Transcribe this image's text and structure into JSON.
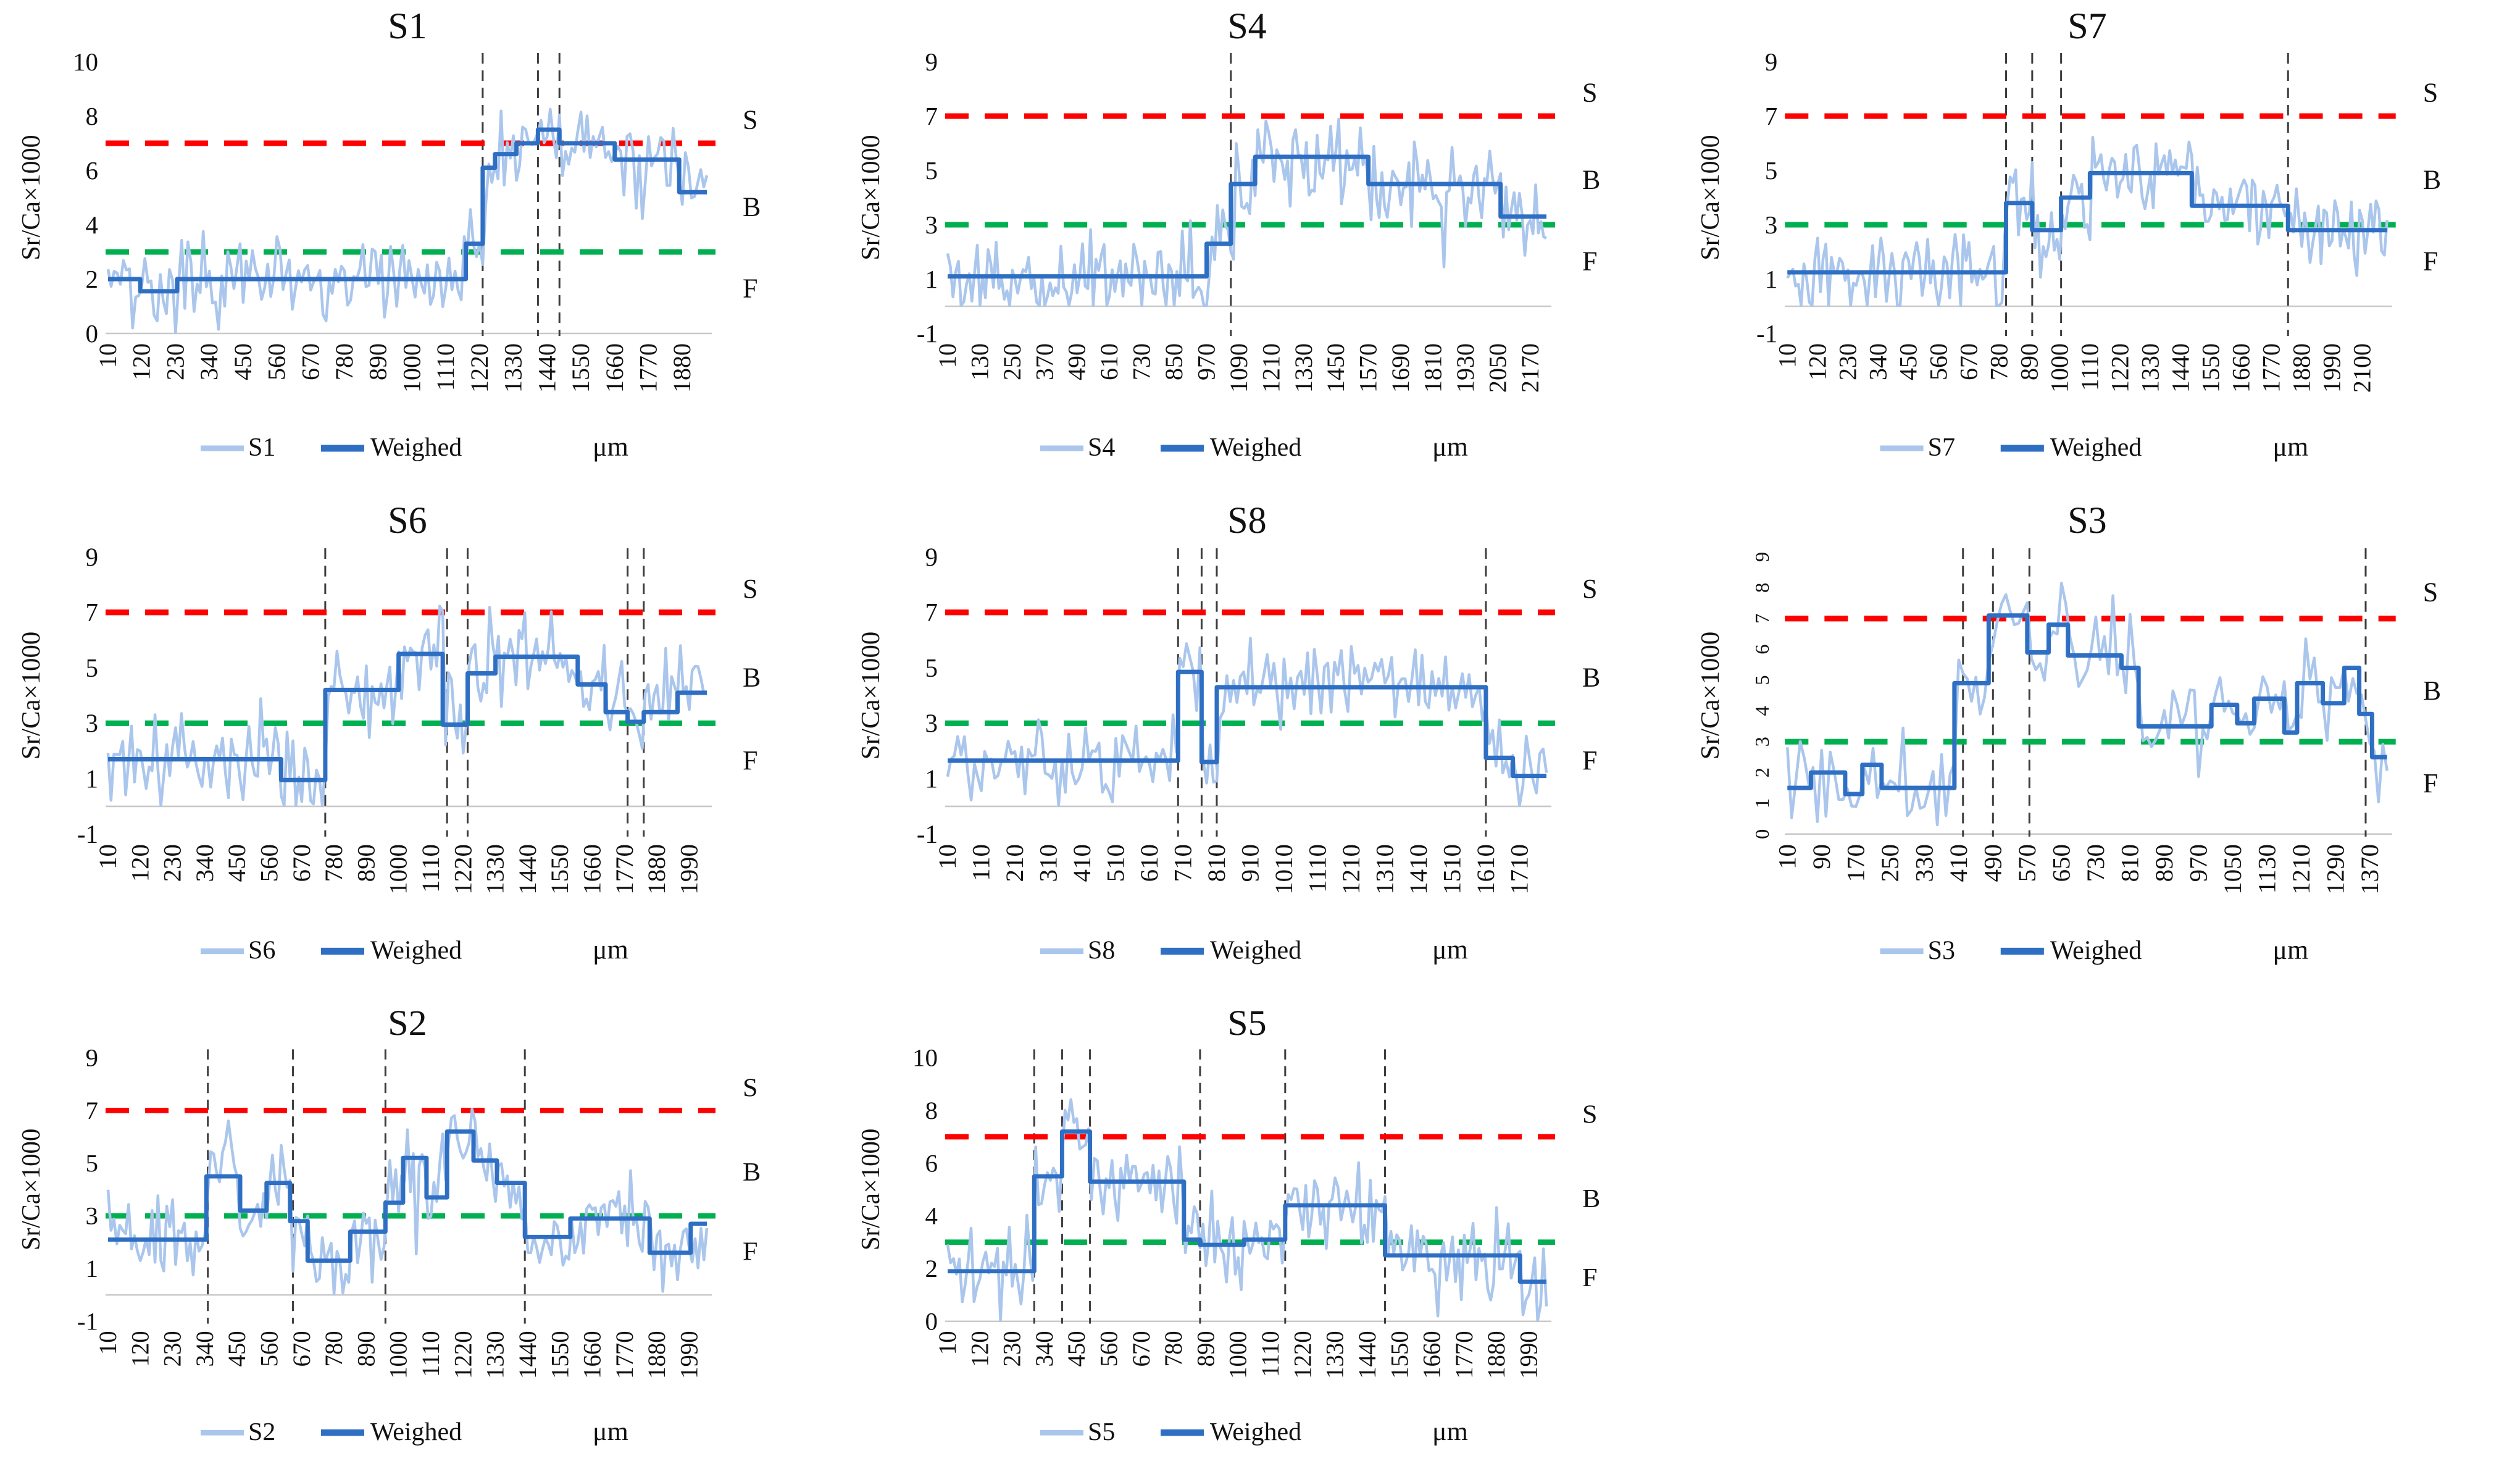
{
  "labels": {
    "ylabel": "Sr/Ca×1000",
    "xunit": "μm",
    "weighed": "Weighed",
    "zone_s": "S",
    "zone_b": "B",
    "zone_f": "F"
  },
  "thresholds": {
    "s_value": 7,
    "f_value": 3
  },
  "styles": {
    "raw_color": "#aac6ec",
    "weighed_color": "#2e6fc3",
    "s_line_color": "#ff0000",
    "f_line_color": "#00b050",
    "vline_color": "#3d3d3d",
    "baseline_color": "#c9c9c9",
    "text_color": "#111111"
  },
  "chart_data": [
    {
      "type": "line",
      "title": "S1",
      "series_label": "S1",
      "ylabel": "Sr/Ca×1000",
      "xlabel": "μm",
      "ylim": [
        0,
        10
      ],
      "y_ticks": [
        0,
        2,
        4,
        6,
        8,
        10
      ],
      "xlim": [
        10,
        1960
      ],
      "x_ticks": [
        10,
        120,
        230,
        340,
        450,
        560,
        670,
        780,
        890,
        1000,
        1110,
        1220,
        1330,
        1440,
        1550,
        1660,
        1770,
        1880
      ],
      "threshold_s": 7,
      "threshold_f": 3,
      "vlines": [
        1230,
        1410,
        1480
      ],
      "weighed_steps": [
        [
          115,
          2.0
        ],
        [
          235,
          1.55
        ],
        [
          1175,
          2.0
        ],
        [
          1230,
          3.3
        ],
        [
          1270,
          6.1
        ],
        [
          1340,
          6.6
        ],
        [
          1410,
          7.0
        ],
        [
          1480,
          7.5
        ],
        [
          1660,
          7.0
        ],
        [
          1870,
          6.4
        ],
        [
          1960,
          5.2
        ]
      ],
      "raw_series": {
        "sample_step": 10,
        "noise_sd": 0.55,
        "seed": 3
      },
      "legend": [
        "S1",
        "Weighed"
      ],
      "zone_labels": [
        "S",
        "B",
        "F"
      ]
    },
    {
      "type": "line",
      "title": "S4",
      "series_label": "S4",
      "ylabel": "Sr/Ca×1000",
      "xlabel": "μm",
      "ylim": [
        -1,
        9
      ],
      "y_ticks": [
        -1,
        1,
        3,
        5,
        7,
        9
      ],
      "xlim": [
        10,
        2230
      ],
      "x_ticks": [
        10,
        130,
        250,
        370,
        490,
        610,
        730,
        850,
        970,
        1090,
        1210,
        1330,
        1450,
        1570,
        1690,
        1810,
        1930,
        2050,
        2170
      ],
      "threshold_s": 7,
      "threshold_f": 3,
      "vlines": [
        1060
      ],
      "weighed_steps": [
        [
          970,
          1.1
        ],
        [
          1060,
          2.3
        ],
        [
          1150,
          4.5
        ],
        [
          1570,
          5.5
        ],
        [
          2060,
          4.5
        ],
        [
          2230,
          3.3
        ]
      ],
      "raw_series": {
        "sample_step": 10,
        "noise_sd": 0.55,
        "seed": 8
      },
      "legend": [
        "S4",
        "Weighed"
      ],
      "zone_labels": [
        "S",
        "B",
        "F"
      ]
    },
    {
      "type": "line",
      "title": "S7",
      "series_label": "S7",
      "ylabel": "Sr/Ca×1000",
      "xlabel": "μm",
      "ylim": [
        -1,
        9
      ],
      "y_ticks": [
        -1,
        1,
        3,
        5,
        7,
        9
      ],
      "xlim": [
        10,
        2190
      ],
      "x_ticks": [
        10,
        120,
        230,
        340,
        450,
        560,
        670,
        780,
        890,
        1000,
        1110,
        1220,
        1330,
        1440,
        1550,
        1660,
        1770,
        1880,
        1990,
        2100
      ],
      "threshold_s": 7,
      "threshold_f": 3,
      "vlines": [
        805,
        900,
        1005,
        1830
      ],
      "weighed_steps": [
        [
          805,
          1.25
        ],
        [
          900,
          3.8
        ],
        [
          1005,
          2.8
        ],
        [
          1110,
          4.0
        ],
        [
          1480,
          4.9
        ],
        [
          1830,
          3.7
        ],
        [
          2190,
          2.8
        ]
      ],
      "raw_series": {
        "sample_step": 10,
        "noise_sd": 0.55,
        "seed": 5
      },
      "legend": [
        "S7",
        "Weighed"
      ],
      "zone_labels": [
        "S",
        "B",
        "F"
      ]
    },
    {
      "type": "line",
      "title": "S6",
      "series_label": "S6",
      "ylabel": "Sr/Ca×1000",
      "xlabel": "μm",
      "ylim": [
        -1,
        9
      ],
      "y_ticks": [
        -1,
        1,
        3,
        5,
        7,
        9
      ],
      "xlim": [
        10,
        2050
      ],
      "x_ticks": [
        10,
        120,
        230,
        340,
        450,
        560,
        670,
        780,
        890,
        1000,
        1110,
        1220,
        1330,
        1440,
        1550,
        1660,
        1770,
        1880,
        1990
      ],
      "threshold_s": 7,
      "threshold_f": 3,
      "vlines": [
        750,
        1165,
        1235,
        1780,
        1835
      ],
      "weighed_steps": [
        [
          600,
          1.7
        ],
        [
          750,
          0.95
        ],
        [
          1000,
          4.2
        ],
        [
          1150,
          5.5
        ],
        [
          1235,
          2.95
        ],
        [
          1330,
          4.8
        ],
        [
          1610,
          5.4
        ],
        [
          1705,
          4.4
        ],
        [
          1780,
          3.4
        ],
        [
          1835,
          3.05
        ],
        [
          1950,
          3.4
        ],
        [
          2050,
          4.1
        ]
      ],
      "raw_series": {
        "sample_step": 10,
        "noise_sd": 0.55,
        "seed": 12
      },
      "legend": [
        "S6",
        "Weighed"
      ],
      "zone_labels": [
        "S",
        "B",
        "F"
      ]
    },
    {
      "type": "line",
      "title": "S8",
      "series_label": "S8",
      "ylabel": "Sr/Ca×1000",
      "xlabel": "μm",
      "ylim": [
        -1,
        9
      ],
      "y_ticks": [
        -1,
        1,
        3,
        5,
        7,
        9
      ],
      "xlim": [
        10,
        1790
      ],
      "x_ticks": [
        10,
        110,
        210,
        310,
        410,
        510,
        610,
        710,
        810,
        910,
        1010,
        1110,
        1210,
        1310,
        1410,
        1510,
        1610,
        1710
      ],
      "threshold_s": 7,
      "threshold_f": 3,
      "vlines": [
        695,
        765,
        810,
        1610
      ],
      "weighed_steps": [
        [
          695,
          1.65
        ],
        [
          765,
          4.85
        ],
        [
          810,
          1.6
        ],
        [
          1610,
          4.3
        ],
        [
          1690,
          1.75
        ],
        [
          1790,
          1.1
        ]
      ],
      "raw_series": {
        "sample_step": 10,
        "noise_sd": 0.55,
        "seed": 21
      },
      "legend": [
        "S8",
        "Weighed"
      ],
      "zone_labels": [
        "S",
        "B",
        "F"
      ]
    },
    {
      "type": "line",
      "title": "S3",
      "series_label": "S3",
      "ylabel": "Sr/Ca×1000",
      "xlabel": "μm",
      "ylim": [
        0,
        9
      ],
      "y_ticks": [
        0,
        1,
        2,
        3,
        4,
        5,
        6,
        7,
        8,
        9
      ],
      "y_ticks_rotated": true,
      "xlim": [
        10,
        1410
      ],
      "x_ticks": [
        10,
        90,
        170,
        250,
        330,
        410,
        490,
        570,
        650,
        730,
        810,
        890,
        970,
        1050,
        1130,
        1210,
        1290,
        1370
      ],
      "threshold_s": 7,
      "threshold_f": 3,
      "vlines": [
        420,
        490,
        575,
        1360
      ],
      "weighed_steps": [
        [
          65,
          1.5
        ],
        [
          145,
          2.0
        ],
        [
          185,
          1.3
        ],
        [
          230,
          2.25
        ],
        [
          400,
          1.5
        ],
        [
          480,
          4.9
        ],
        [
          570,
          7.1
        ],
        [
          620,
          5.9
        ],
        [
          665,
          6.8
        ],
        [
          790,
          5.8
        ],
        [
          830,
          5.4
        ],
        [
          1000,
          3.5
        ],
        [
          1060,
          4.2
        ],
        [
          1100,
          3.6
        ],
        [
          1170,
          4.4
        ],
        [
          1200,
          3.3
        ],
        [
          1260,
          4.9
        ],
        [
          1310,
          4.25
        ],
        [
          1345,
          5.4
        ],
        [
          1375,
          3.9
        ],
        [
          1410,
          2.5
        ]
      ],
      "raw_series": {
        "sample_step": 10,
        "noise_sd": 0.5,
        "seed": 9
      },
      "legend": [
        "S3",
        "Weighed"
      ],
      "zone_labels": [
        "S",
        "B",
        "F"
      ]
    },
    {
      "type": "line",
      "title": "S2",
      "series_label": "S2",
      "ylabel": "Sr/Ca×1000",
      "xlabel": "μm",
      "ylim": [
        -1,
        9
      ],
      "y_ticks": [
        -1,
        1,
        3,
        5,
        7,
        9
      ],
      "xlim": [
        10,
        2050
      ],
      "x_ticks": [
        10,
        120,
        230,
        340,
        450,
        560,
        670,
        780,
        890,
        1000,
        1110,
        1220,
        1330,
        1440,
        1550,
        1660,
        1770,
        1880,
        1990
      ],
      "threshold_s": 7,
      "threshold_f": 3,
      "vlines": [
        350,
        640,
        955,
        1430
      ],
      "weighed_steps": [
        [
          345,
          2.1
        ],
        [
          460,
          4.5
        ],
        [
          550,
          3.2
        ],
        [
          630,
          4.25
        ],
        [
          690,
          2.8
        ],
        [
          835,
          1.3
        ],
        [
          955,
          2.4
        ],
        [
          1015,
          3.5
        ],
        [
          1095,
          5.2
        ],
        [
          1165,
          3.7
        ],
        [
          1255,
          6.2
        ],
        [
          1335,
          5.1
        ],
        [
          1430,
          4.25
        ],
        [
          1585,
          2.2
        ],
        [
          1855,
          2.9
        ],
        [
          1995,
          1.6
        ],
        [
          2050,
          2.7
        ]
      ],
      "raw_series": {
        "sample_step": 10,
        "noise_sd": 0.55,
        "seed": 14
      },
      "legend": [
        "S2",
        "Weighed"
      ],
      "zone_labels": [
        "S",
        "B",
        "F"
      ]
    },
    {
      "type": "line",
      "title": "S5",
      "series_label": "S5",
      "ylabel": "Sr/Ca×1000",
      "xlabel": "μm",
      "ylim": [
        0,
        10
      ],
      "y_ticks": [
        0,
        2,
        4,
        6,
        8,
        10
      ],
      "xlim": [
        10,
        2050
      ],
      "x_ticks": [
        10,
        120,
        230,
        340,
        450,
        560,
        670,
        780,
        890,
        1000,
        1110,
        1220,
        1330,
        1440,
        1550,
        1660,
        1770,
        1880,
        1990
      ],
      "threshold_s": 7,
      "threshold_f": 3,
      "vlines": [
        305,
        400,
        495,
        870,
        1160,
        1500
      ],
      "weighed_steps": [
        [
          305,
          1.9
        ],
        [
          400,
          5.5
        ],
        [
          495,
          7.2
        ],
        [
          815,
          5.3
        ],
        [
          870,
          3.1
        ],
        [
          1020,
          2.9
        ],
        [
          1160,
          3.1
        ],
        [
          1500,
          4.4
        ],
        [
          1960,
          2.5
        ],
        [
          2050,
          1.5
        ]
      ],
      "raw_series": {
        "sample_step": 10,
        "noise_sd": 0.55,
        "seed": 6
      },
      "legend": [
        "S5",
        "Weighed"
      ],
      "zone_labels": [
        "S",
        "B",
        "F"
      ]
    }
  ]
}
